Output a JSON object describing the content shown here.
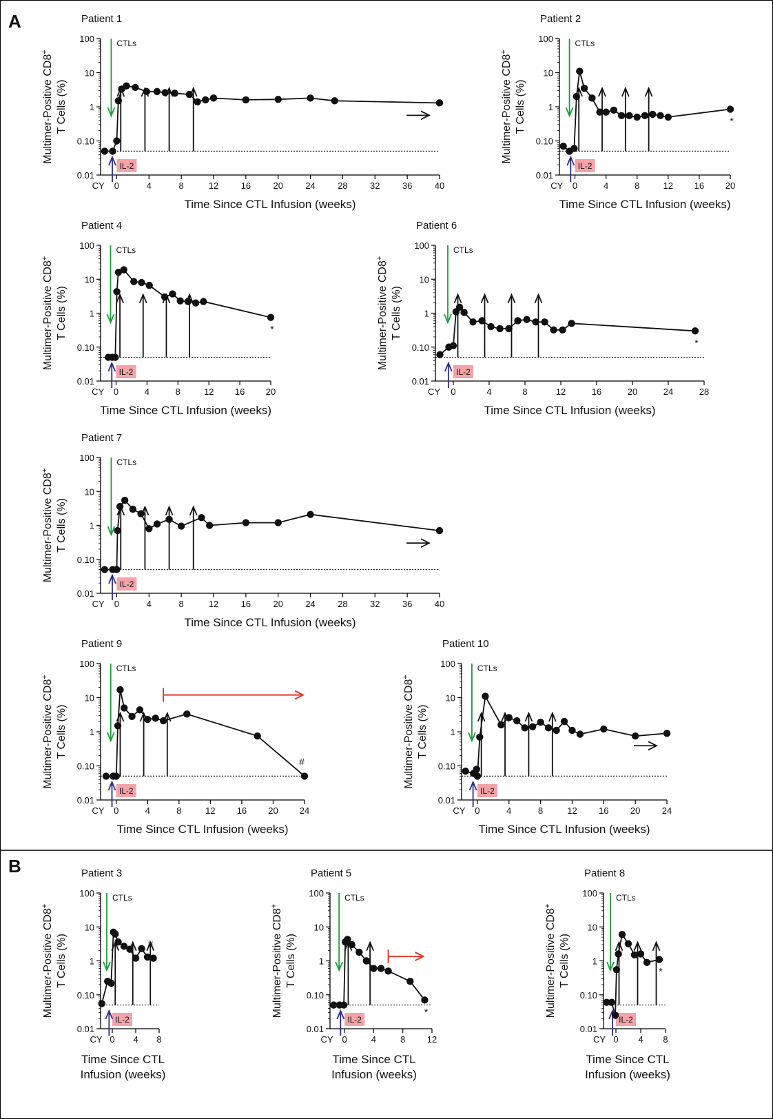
{
  "figure": {
    "panel_labels": [
      "A",
      "B"
    ],
    "common": {
      "ylabel_line1": "Multimer-Positive CD8",
      "ylabel_sup": "+",
      "ylabel_line2": "T Cells (%)",
      "xlabel": "Time Since CTL Infusion (weeks)",
      "xlabel_line1": "Time Since CTL",
      "xlabel_line2": "Infusion (weeks)",
      "ctl_label": "CTLs",
      "il2_label": "IL-2",
      "cy_label": "CY",
      "ytick_labels": [
        "0.01",
        "0.10",
        "1",
        "10",
        "100"
      ],
      "colors": {
        "line": "#111111",
        "ctl_arrow": "#1a9e3a",
        "cy_arrow": "#2d2a8c",
        "il2_box": "#f4a3a8",
        "treatment_bar": "#e8382c",
        "dotted_threshold": "#222222"
      }
    }
  },
  "chart_data": [
    {
      "type": "line",
      "panel": "A",
      "title": "Patient 1",
      "scale": "log",
      "ylim": [
        0.01,
        100
      ],
      "xlim": [
        -2,
        40
      ],
      "xticks": [
        0,
        4,
        8,
        12,
        16,
        20,
        24,
        28,
        32,
        36,
        40
      ],
      "threshold": 0.05,
      "x": [
        -1.5,
        -0.5,
        0,
        0.2,
        0.6,
        1.2,
        2.3,
        3.7,
        5,
        6,
        7.2,
        9,
        10,
        11,
        12,
        16,
        20,
        24,
        27,
        40
      ],
      "y": [
        0.05,
        0.05,
        0.1,
        1.5,
        3.3,
        4.1,
        3.7,
        2.8,
        2.8,
        2.6,
        2.5,
        2.3,
        1.4,
        1.6,
        1.8,
        1.6,
        1.65,
        1.8,
        1.5,
        1.3
      ],
      "dose_weeks": [
        0.5,
        3.5,
        6.5,
        9.5
      ],
      "annotation": "→"
    },
    {
      "type": "line",
      "panel": "A",
      "title": "Patient 2",
      "scale": "log",
      "ylim": [
        0.01,
        100
      ],
      "xlim": [
        -2,
        20
      ],
      "xticks": [
        0,
        4,
        8,
        12,
        16,
        20
      ],
      "threshold": 0.05,
      "x": [
        -1.5,
        -0.7,
        -0.1,
        0.2,
        0.6,
        1.2,
        2.2,
        3.2,
        4,
        5,
        6,
        7,
        8,
        9,
        10,
        11,
        12,
        20
      ],
      "y": [
        0.07,
        0.05,
        0.06,
        2,
        11,
        3.5,
        1.8,
        0.7,
        0.7,
        0.8,
        0.55,
        0.55,
        0.5,
        0.55,
        0.6,
        0.55,
        0.5,
        0.85
      ],
      "dose_weeks": [
        0.5,
        3.5,
        6.5,
        9.5
      ],
      "annotation": "*"
    },
    {
      "type": "line",
      "panel": "A",
      "title": "Patient 4",
      "scale": "log",
      "ylim": [
        0.01,
        100
      ],
      "xlim": [
        -2,
        20
      ],
      "xticks": [
        0,
        4,
        8,
        12,
        16,
        20
      ],
      "threshold": 0.05,
      "x": [
        -1,
        -0.5,
        -0.1,
        0.1,
        0.3,
        1,
        2.3,
        3.3,
        4.3,
        6.3,
        7.3,
        8.3,
        9.3,
        10.3,
        11.3,
        20
      ],
      "y": [
        0.05,
        0.05,
        0.05,
        4.3,
        16,
        19,
        8.5,
        8,
        6.6,
        3,
        3.7,
        2.3,
        2.2,
        2,
        2.2,
        0.75
      ],
      "dose_weeks": [
        0.5,
        3.5,
        6.5,
        9.5
      ],
      "annotation": "*"
    },
    {
      "type": "line",
      "panel": "A",
      "title": "Patient 6",
      "scale": "log",
      "ylim": [
        0.01,
        100
      ],
      "xlim": [
        -2,
        28
      ],
      "xticks": [
        0,
        4,
        8,
        12,
        16,
        20,
        24,
        28
      ],
      "threshold": 0.05,
      "x": [
        -1.5,
        -0.5,
        0,
        0.3,
        0.7,
        1.2,
        2.2,
        3.2,
        4.2,
        5.2,
        6.2,
        7.2,
        8.2,
        9.2,
        10.2,
        11.2,
        12.2,
        13.2,
        27
      ],
      "y": [
        0.06,
        0.1,
        0.11,
        1.1,
        1.5,
        1.05,
        0.55,
        0.6,
        0.4,
        0.35,
        0.35,
        0.6,
        0.65,
        0.55,
        0.55,
        0.32,
        0.32,
        0.5,
        0.3
      ],
      "dose_weeks": [
        0.5,
        3.5,
        6.5,
        9.5
      ],
      "annotation": "*"
    },
    {
      "type": "line",
      "panel": "A",
      "title": "Patient 7",
      "scale": "log",
      "ylim": [
        0.01,
        100
      ],
      "xlim": [
        -2,
        40
      ],
      "xticks": [
        0,
        4,
        8,
        12,
        16,
        20,
        24,
        28,
        32,
        36,
        40
      ],
      "threshold": 0.05,
      "x": [
        -1.5,
        -0.5,
        0,
        0.1,
        0.4,
        1,
        2,
        3,
        4,
        5,
        6.5,
        8,
        10.5,
        11.5,
        16,
        20,
        24,
        40
      ],
      "y": [
        0.05,
        0.05,
        0.05,
        0.7,
        3.6,
        5.5,
        3,
        2.2,
        0.8,
        1.1,
        1.5,
        0.95,
        1.7,
        1,
        1.2,
        1.2,
        2.1,
        0.7
      ],
      "dose_weeks": [
        0.5,
        3.5,
        6.5,
        9.5
      ],
      "annotation": "→"
    },
    {
      "type": "line",
      "panel": "A",
      "title": "Patient 9",
      "scale": "log",
      "ylim": [
        0.01,
        100
      ],
      "xlim": [
        -2,
        24
      ],
      "xticks": [
        0,
        4,
        8,
        12,
        16,
        20,
        24
      ],
      "threshold": 0.05,
      "x": [
        -1.3,
        -0.4,
        0,
        0.2,
        0.5,
        1,
        2,
        3,
        4,
        5,
        6,
        9,
        18,
        24
      ],
      "y": [
        0.05,
        0.05,
        0.05,
        1.5,
        17,
        5,
        2.8,
        4.4,
        2.3,
        2.5,
        2.1,
        3.3,
        0.75,
        0.05
      ],
      "dose_weeks": [
        0.5,
        3.5,
        6.5
      ],
      "treatment_bar": [
        6,
        24
      ],
      "annotation": "#"
    },
    {
      "type": "line",
      "panel": "A",
      "title": "Patient 10",
      "scale": "log",
      "ylim": [
        0.01,
        100
      ],
      "xlim": [
        -2,
        24
      ],
      "xticks": [
        0,
        4,
        8,
        12,
        16,
        20,
        24
      ],
      "threshold": 0.05,
      "x": [
        -1.5,
        -0.5,
        -0.1,
        0,
        0.3,
        1,
        3,
        4,
        5,
        6,
        7,
        8,
        9,
        10,
        11,
        12,
        13,
        16,
        20,
        24
      ],
      "y": [
        0.07,
        0.06,
        0.08,
        0.05,
        0.7,
        11,
        1.6,
        2.6,
        2.1,
        1.3,
        1.4,
        1.9,
        1.3,
        1.1,
        2,
        1.1,
        0.85,
        1.2,
        0.75,
        0.9
      ],
      "dose_weeks": [
        0.5,
        3.5,
        6.5,
        9.5
      ],
      "annotation": "→"
    },
    {
      "type": "line",
      "panel": "B",
      "title": "Patient 3",
      "scale": "log",
      "ylim": [
        0.01,
        100
      ],
      "xlim": [
        -2,
        8
      ],
      "xticks": [
        0,
        4,
        8
      ],
      "threshold": 0.05,
      "x": [
        -1.8,
        -0.8,
        -0.2,
        0.2,
        0.5,
        1,
        2,
        3,
        4,
        5,
        6,
        7
      ],
      "y": [
        0.055,
        0.25,
        0.22,
        7,
        6.2,
        3.6,
        2.7,
        2.2,
        1.2,
        2.3,
        1.3,
        1.2
      ],
      "dose_weeks": [
        0.5,
        3.5,
        6.5
      ],
      "annotation": "#"
    },
    {
      "type": "line",
      "panel": "B",
      "title": "Patient 5",
      "scale": "log",
      "ylim": [
        0.01,
        100
      ],
      "xlim": [
        -2,
        12
      ],
      "xticks": [
        0,
        4,
        8,
        12
      ],
      "threshold": 0.05,
      "x": [
        -1.5,
        -0.7,
        -0.1,
        0.1,
        0.4,
        1,
        2,
        3,
        4,
        5,
        6,
        9,
        11
      ],
      "y": [
        0.05,
        0.05,
        0.05,
        3.6,
        4.3,
        3,
        1.8,
        1,
        0.6,
        0.6,
        0.5,
        0.25,
        0.07
      ],
      "dose_weeks": [
        0.5,
        3.5
      ],
      "treatment_bar": [
        6,
        11
      ],
      "annotation": "*"
    },
    {
      "type": "line",
      "panel": "B",
      "title": "Patient 8",
      "scale": "log",
      "ylim": [
        0.01,
        100
      ],
      "xlim": [
        -2,
        8
      ],
      "xticks": [
        0,
        4,
        8
      ],
      "threshold": 0.05,
      "x": [
        -1.5,
        -0.7,
        -0.1,
        0.1,
        0.4,
        1,
        2,
        3,
        4,
        5,
        7
      ],
      "y": [
        0.06,
        0.06,
        0.025,
        0.55,
        1.6,
        6,
        3.2,
        1.5,
        1.6,
        0.9,
        1.1
      ],
      "dose_weeks": [
        0.5,
        3.5,
        6.5
      ],
      "annotation": "*"
    }
  ]
}
